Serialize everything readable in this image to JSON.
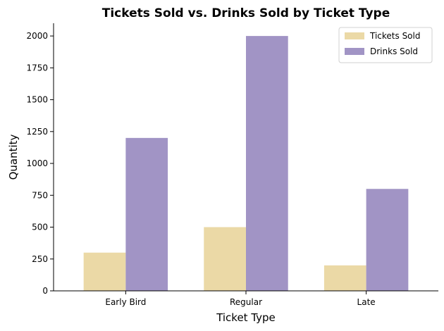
{
  "chart_data": {
    "type": "bar",
    "title": "Tickets Sold vs. Drinks Sold by Ticket Type",
    "xlabel": "Ticket Type",
    "ylabel": "Quantity",
    "categories": [
      "Early Bird",
      "Regular",
      "Late"
    ],
    "series": [
      {
        "name": "Tickets Sold",
        "values": [
          300,
          500,
          200
        ],
        "color": "#ebd9a6"
      },
      {
        "name": "Drinks Sold",
        "values": [
          1200,
          2000,
          800
        ],
        "color": "#a194c5"
      }
    ],
    "ylim": [
      0,
      2100
    ],
    "yticks": [
      0,
      250,
      500,
      750,
      1000,
      1250,
      1500,
      1750,
      2000
    ],
    "ytick_labels": [
      "0",
      "250",
      "500",
      "750",
      "1000",
      "1250",
      "1500",
      "1750",
      "2000"
    ],
    "grid": false,
    "legend_position": "top-right"
  }
}
